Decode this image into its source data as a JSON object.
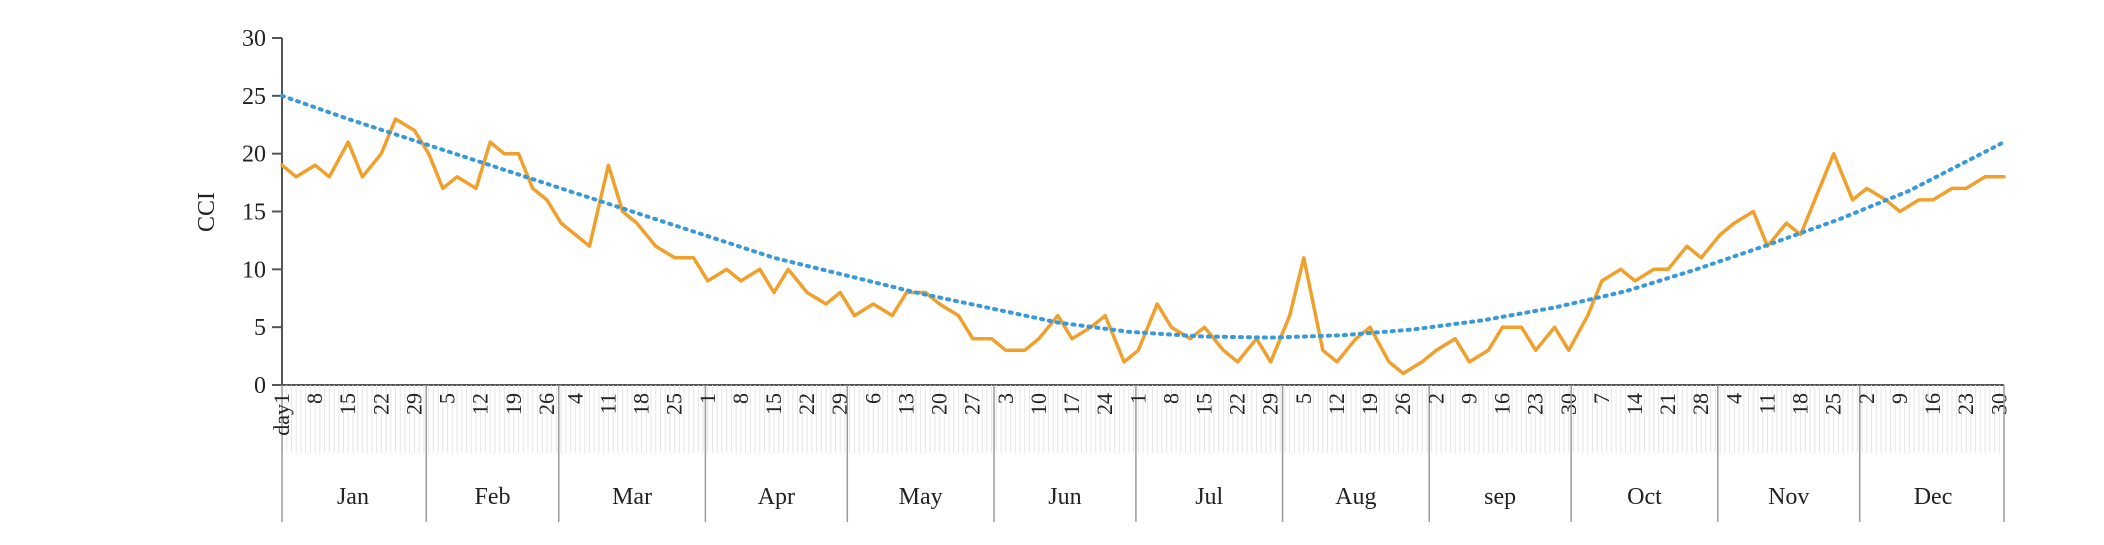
{
  "chart_data": {
    "type": "line",
    "title": "",
    "xlabel": "",
    "ylabel": "CCI",
    "ylim": [
      0,
      30
    ],
    "yticks": [
      0,
      5,
      10,
      15,
      20,
      25,
      30
    ],
    "x_unit": "day of year",
    "xlim": [
      1,
      365
    ],
    "grid": false,
    "legend": "none",
    "first_day_label": "day1",
    "months": [
      {
        "label": "Jan",
        "start_day": 1,
        "end_day": 31,
        "ticks": [
          "1",
          "8",
          "15",
          "22",
          "29"
        ],
        "tick_days": [
          1,
          8,
          15,
          22,
          29
        ]
      },
      {
        "label": "Feb",
        "start_day": 32,
        "end_day": 59,
        "ticks": [
          "5",
          "12",
          "19",
          "26"
        ],
        "tick_days": [
          36,
          43,
          50,
          57
        ]
      },
      {
        "label": "Mar",
        "start_day": 60,
        "end_day": 90,
        "ticks": [
          "4",
          "11",
          "18",
          "25"
        ],
        "tick_days": [
          63,
          70,
          77,
          84
        ]
      },
      {
        "label": "Apr",
        "start_day": 91,
        "end_day": 120,
        "ticks": [
          "1",
          "8",
          "15",
          "22",
          "29"
        ],
        "tick_days": [
          91,
          98,
          105,
          112,
          119
        ]
      },
      {
        "label": "May",
        "start_day": 121,
        "end_day": 151,
        "ticks": [
          "6",
          "13",
          "20",
          "27"
        ],
        "tick_days": [
          126,
          133,
          140,
          147
        ]
      },
      {
        "label": "Jun",
        "start_day": 152,
        "end_day": 181,
        "ticks": [
          "3",
          "10",
          "17",
          "24"
        ],
        "tick_days": [
          154,
          161,
          168,
          175
        ]
      },
      {
        "label": "Jul",
        "start_day": 182,
        "end_day": 212,
        "ticks": [
          "1",
          "8",
          "15",
          "22",
          "29"
        ],
        "tick_days": [
          182,
          189,
          196,
          203,
          210
        ]
      },
      {
        "label": "Aug",
        "start_day": 213,
        "end_day": 243,
        "ticks": [
          "5",
          "12",
          "19",
          "26"
        ],
        "tick_days": [
          217,
          224,
          231,
          238
        ]
      },
      {
        "label": "sep",
        "start_day": 244,
        "end_day": 273,
        "ticks": [
          "2",
          "9",
          "16",
          "23",
          "30"
        ],
        "tick_days": [
          245,
          252,
          259,
          266,
          273
        ]
      },
      {
        "label": "Oct",
        "start_day": 274,
        "end_day": 304,
        "ticks": [
          "7",
          "14",
          "21",
          "28"
        ],
        "tick_days": [
          280,
          287,
          294,
          301
        ]
      },
      {
        "label": "Nov",
        "start_day": 305,
        "end_day": 334,
        "ticks": [
          "4",
          "11",
          "18",
          "25"
        ],
        "tick_days": [
          308,
          315,
          322,
          329
        ]
      },
      {
        "label": "Dec",
        "start_day": 335,
        "end_day": 365,
        "ticks": [
          "2",
          "9",
          "16",
          "23",
          "30"
        ],
        "tick_days": [
          336,
          343,
          350,
          357,
          364
        ]
      }
    ],
    "series": [
      {
        "type": "line",
        "color": "#f0a02c",
        "x": [
          1,
          4,
          8,
          11,
          15,
          18,
          22,
          25,
          29,
          32,
          35,
          38,
          42,
          45,
          48,
          51,
          54,
          57,
          60,
          63,
          66,
          70,
          73,
          76,
          80,
          84,
          88,
          91,
          95,
          98,
          102,
          105,
          108,
          112,
          116,
          119,
          122,
          126,
          130,
          133,
          137,
          140,
          144,
          147,
          151,
          154,
          158,
          161,
          165,
          168,
          172,
          175,
          179,
          182,
          186,
          189,
          193,
          196,
          200,
          203,
          207,
          210,
          214,
          217,
          221,
          224,
          228,
          231,
          235,
          238,
          242,
          245,
          249,
          252,
          256,
          259,
          263,
          266,
          270,
          273,
          277,
          280,
          284,
          287,
          291,
          294,
          298,
          301,
          305,
          308,
          312,
          315,
          319,
          322,
          326,
          329,
          333,
          336,
          340,
          343,
          347,
          350,
          354,
          357,
          361,
          365
        ],
        "y": [
          19,
          18,
          19,
          18,
          21,
          18,
          20,
          23,
          22,
          20,
          17,
          18,
          17,
          21,
          20,
          20,
          17,
          16,
          14,
          13,
          12,
          19,
          15,
          14,
          12,
          11,
          11,
          9,
          10,
          9,
          10,
          8,
          10,
          8,
          7,
          8,
          6,
          7,
          6,
          8,
          8,
          7,
          6,
          4,
          4,
          3,
          3,
          4,
          6,
          4,
          5,
          6,
          2,
          3,
          7,
          5,
          4,
          5,
          3,
          2,
          4,
          2,
          6,
          11,
          3,
          2,
          4,
          5,
          2,
          1,
          2,
          3,
          4,
          2,
          3,
          5,
          5,
          3,
          5,
          3,
          6,
          9,
          10,
          9,
          10,
          10,
          12,
          11,
          13,
          14,
          15,
          12,
          14,
          13,
          17,
          20,
          16,
          17,
          16,
          15,
          16,
          16,
          17,
          17,
          18,
          18
        ]
      },
      {
        "type": "trendline",
        "style": "dotted",
        "color": "#3a9ad9",
        "x": [
          1,
          15,
          30,
          45,
          60,
          75,
          90,
          105,
          120,
          135,
          150,
          165,
          180,
          195,
          210,
          225,
          240,
          255,
          270,
          285,
          300,
          315,
          330,
          345,
          365
        ],
        "y": [
          25,
          23,
          21,
          19,
          17,
          15,
          13,
          11,
          9.5,
          8,
          6.7,
          5.4,
          4.6,
          4.2,
          4.1,
          4.3,
          4.8,
          5.6,
          6.7,
          8.1,
          10,
          12.1,
          14.3,
          16.8,
          21
        ]
      }
    ]
  }
}
